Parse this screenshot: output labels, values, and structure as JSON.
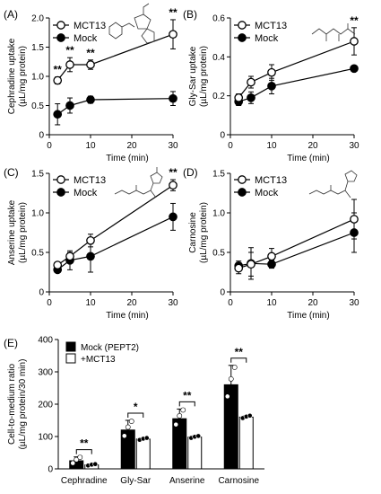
{
  "chart_data": [
    {
      "type": "line",
      "panel_label": "(A)",
      "ylabel": [
        "Cephradine uptake",
        "(µL/mg protein)"
      ],
      "xlabel": "Time (min)",
      "xlim": [
        0,
        30
      ],
      "ylim": [
        0,
        2.0
      ],
      "x_ticks": [
        "0",
        "10",
        "20",
        "30"
      ],
      "y_ticks": [
        "0",
        "0.5",
        "1.0",
        "1.5",
        "2.0"
      ],
      "x": [
        2,
        5,
        10,
        30
      ],
      "series": [
        {
          "name": "MCT13",
          "marker": "open-circle",
          "y": [
            0.93,
            1.2,
            1.2,
            1.72
          ],
          "err": [
            0.06,
            0.12,
            0.08,
            0.25
          ]
        },
        {
          "name": "Mock",
          "marker": "filled-circle",
          "y": [
            0.35,
            0.5,
            0.6,
            0.62
          ],
          "err": [
            0.18,
            0.13,
            0.06,
            0.12
          ]
        }
      ],
      "significance": [
        {
          "x": 2,
          "label": "**"
        },
        {
          "x": 5,
          "label": "**"
        },
        {
          "x": 10,
          "label": "**"
        },
        {
          "x": 30,
          "label": "**"
        }
      ]
    },
    {
      "type": "line",
      "panel_label": "(B)",
      "ylabel": [
        "Gly-Sar uptake",
        "(µL/mg protein)"
      ],
      "xlabel": "Time (min)",
      "xlim": [
        0,
        30
      ],
      "ylim": [
        0,
        0.6
      ],
      "x_ticks": [
        "0",
        "10",
        "20",
        "30"
      ],
      "y_ticks": [
        "0",
        "0.2",
        "0.4",
        "0.6"
      ],
      "x": [
        2,
        5,
        10,
        30
      ],
      "series": [
        {
          "name": "MCT13",
          "marker": "open-circle",
          "y": [
            0.19,
            0.27,
            0.32,
            0.48
          ],
          "err": [
            0.02,
            0.03,
            0.04,
            0.07
          ]
        },
        {
          "name": "Mock",
          "marker": "filled-circle",
          "y": [
            0.17,
            0.19,
            0.25,
            0.34
          ],
          "err": [
            0.02,
            0.03,
            0.04,
            0.01
          ]
        }
      ],
      "significance": [
        {
          "x": 30,
          "label": "**"
        }
      ]
    },
    {
      "type": "line",
      "panel_label": "(C)",
      "ylabel": [
        "Anserine uptake",
        "(µL/mg protein)"
      ],
      "xlabel": "Time (min)",
      "xlim": [
        0,
        30
      ],
      "ylim": [
        0,
        1.5
      ],
      "x_ticks": [
        "0",
        "10",
        "20",
        "30"
      ],
      "y_ticks": [
        "0",
        "0.5",
        "1.0",
        "1.5"
      ],
      "x": [
        2,
        5,
        10,
        30
      ],
      "series": [
        {
          "name": "MCT13",
          "marker": "open-circle",
          "y": [
            0.34,
            0.45,
            0.65,
            1.35
          ],
          "err": [
            0.03,
            0.05,
            0.08,
            0.07
          ]
        },
        {
          "name": "Mock",
          "marker": "filled-circle",
          "y": [
            0.28,
            0.4,
            0.45,
            0.95
          ],
          "err": [
            0.02,
            0.12,
            0.2,
            0.17
          ]
        }
      ],
      "significance": [
        {
          "x": 30,
          "label": "**"
        }
      ]
    },
    {
      "type": "line",
      "panel_label": "(D)",
      "ylabel": [
        "Carnosine",
        "(µL/mg protein)"
      ],
      "xlabel": "Time (min)",
      "xlim": [
        0,
        30
      ],
      "ylim": [
        0,
        1.5
      ],
      "x_ticks": [
        "0",
        "10",
        "20",
        "30"
      ],
      "y_ticks": [
        "0",
        "0.5",
        "1.0",
        "1.5"
      ],
      "x": [
        2,
        5,
        10,
        30
      ],
      "series": [
        {
          "name": "MCT13",
          "marker": "open-circle",
          "y": [
            0.3,
            0.35,
            0.45,
            0.92
          ],
          "err": [
            0.07,
            0.15,
            0.1,
            0.25
          ]
        },
        {
          "name": "Mock",
          "marker": "filled-circle",
          "y": [
            0.33,
            0.36,
            0.35,
            0.75
          ],
          "err": [
            0.06,
            0.2,
            0.05,
            0.25
          ]
        }
      ],
      "significance": []
    },
    {
      "type": "bar",
      "panel_label": "(E)",
      "ylabel": [
        "Cell-to-medium ratio",
        "(µL/mg protein/30 min)"
      ],
      "ylim": [
        0,
        400
      ],
      "y_ticks": [
        "0",
        "100",
        "200",
        "300",
        "400"
      ],
      "categories": [
        "Cephradine",
        "Gly-Sar",
        "Anserine",
        "Carnosine"
      ],
      "series": [
        {
          "name": "Mock (PEPT2)",
          "fill": "#000000",
          "values": [
            25,
            120,
            155,
            260
          ],
          "err": [
            12,
            30,
            30,
            60
          ]
        },
        {
          "name": "+MCT13",
          "fill": "#ffffff",
          "values": [
            12,
            92,
            98,
            160
          ],
          "err": [
            3,
            4,
            4,
            5
          ]
        }
      ],
      "significance": [
        "**",
        "*",
        "**",
        "**"
      ]
    }
  ]
}
